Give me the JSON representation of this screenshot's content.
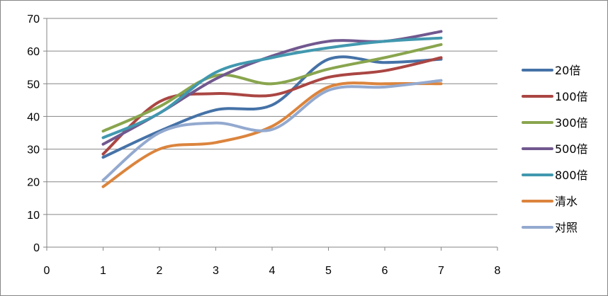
{
  "chart_data": {
    "type": "line",
    "title": "",
    "xlabel": "",
    "ylabel": "",
    "xlim": [
      0,
      8
    ],
    "ylim": [
      0,
      70
    ],
    "x_ticks": [
      "0",
      "1",
      "2",
      "3",
      "4",
      "5",
      "6",
      "7",
      "8"
    ],
    "y_ticks": [
      "0",
      "10",
      "20",
      "30",
      "40",
      "50",
      "60",
      "70"
    ],
    "grid": "horizontal",
    "legend_position": "right",
    "x": [
      1,
      2,
      3,
      4,
      5,
      6,
      7
    ],
    "series": [
      {
        "name": "20倍",
        "color": "#4572A7",
        "values": [
          27.5,
          35.5,
          42,
          43.5,
          57.5,
          56.5,
          57.5
        ]
      },
      {
        "name": "100倍",
        "color": "#AA4643",
        "values": [
          28.5,
          44.5,
          47,
          46.5,
          52,
          54,
          58
        ]
      },
      {
        "name": "300倍",
        "color": "#89A54E",
        "values": [
          35.5,
          43,
          52.5,
          50,
          54.5,
          58,
          62
        ]
      },
      {
        "name": "500倍",
        "color": "#71588F",
        "values": [
          31.5,
          41,
          51.5,
          58.5,
          63,
          63,
          66
        ]
      },
      {
        "name": "800倍",
        "color": "#4198AF",
        "values": [
          33.5,
          41,
          53.5,
          58,
          61,
          63,
          64
        ]
      },
      {
        "name": "清水",
        "color": "#DB843D",
        "values": [
          18.5,
          30,
          32,
          37,
          49,
          50,
          50
        ]
      },
      {
        "name": "对照",
        "color": "#93A9CF",
        "values": [
          20.5,
          35,
          38,
          36,
          48,
          49,
          51
        ]
      }
    ]
  }
}
